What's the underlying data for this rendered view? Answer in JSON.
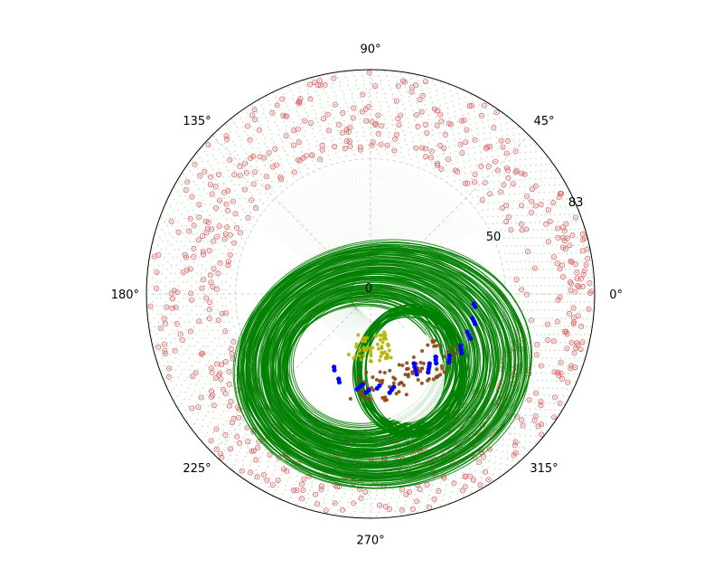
{
  "chart_data": {
    "type": "scatter",
    "projection": "polar",
    "theta_unit": "degrees",
    "theta_ticks": [
      0,
      45,
      90,
      135,
      180,
      225,
      270,
      315
    ],
    "theta_tick_labels": [
      "0°",
      "45°",
      "90°",
      "135°",
      "180°",
      "225°",
      "270°",
      "315°"
    ],
    "r_ticks": [
      0,
      50,
      83
    ],
    "r_tick_labels": [
      "0",
      "50",
      "83"
    ],
    "rlim": [
      0,
      83
    ],
    "r_label_angle": 22.5,
    "grid": true,
    "grid_style": "dashed",
    "title": "",
    "legend": "none",
    "colors": {
      "grid_points": "#8fd18f",
      "circled_points": "#e06060",
      "trajectories": "#008000",
      "highlight_points": "#0000ff",
      "brown_points": "#8b4513",
      "inner_points": "#b5b500"
    },
    "series": [
      {
        "kind": "point-grid",
        "color_key": "grid_points",
        "r_range": [
          52,
          83
        ],
        "r_step": 1.6,
        "arc_step_px": 9
      },
      {
        "kind": "circled-scatter",
        "color_key": "circled_points",
        "r_range": [
          53,
          82
        ],
        "theta_range": [
          0,
          360
        ],
        "count": 700
      },
      {
        "kind": "trajectory-loops",
        "color_key": "trajectories",
        "count": 140,
        "centers": [
          [
            -2,
            -8
          ],
          [
            5,
            -10
          ]
        ],
        "radii": [
          18,
          34
        ]
      },
      {
        "kind": "cluster",
        "color_key": "inner_points",
        "theta_range": [
          250,
          290
        ],
        "r_range": [
          15,
          25
        ],
        "count": 60
      },
      {
        "kind": "cluster",
        "color_key": "brown_points",
        "theta_range": [
          258,
          330
        ],
        "r_range": [
          28,
          40
        ],
        "count": 90
      },
      {
        "kind": "highlight",
        "color_key": "highlight_points",
        "points": [
          [
            300.0,
            34.3
          ],
          [
            300.6,
            32.9
          ],
          [
            301.2,
            31.6
          ],
          [
            302.0,
            30.3
          ],
          [
            306.4,
            36.0
          ],
          [
            307.7,
            35.2
          ],
          [
            309.0,
            34.5
          ],
          [
            310.3,
            33.8
          ],
          [
            313.5,
            35.3
          ],
          [
            314.7,
            34.3
          ],
          [
            316.0,
            33.5
          ],
          [
            319.0,
            38.5
          ],
          [
            320.5,
            37.8
          ],
          [
            322.0,
            37.1
          ],
          [
            327.0,
            40.2
          ],
          [
            328.5,
            39.3
          ],
          [
            330.0,
            38.5
          ],
          [
            336.0,
            40.6
          ],
          [
            337.2,
            39.5
          ],
          [
            338.6,
            38.5
          ],
          [
            344.0,
            40.3
          ],
          [
            345.2,
            39.6
          ],
          [
            346.6,
            38.8
          ],
          [
            353.0,
            39.0
          ],
          [
            354.5,
            38.4
          ],
          [
            262.0,
            35.6
          ],
          [
            263.5,
            34.5
          ],
          [
            265.0,
            33.6
          ],
          [
            267.5,
            36.5
          ],
          [
            269.0,
            35.6
          ],
          [
            274.0,
            35.0
          ],
          [
            275.6,
            34.1
          ],
          [
            281.0,
            37.2
          ],
          [
            282.5,
            36.3
          ],
          [
            284.0,
            35.5
          ],
          [
            250.5,
            34.6
          ],
          [
            249.4,
            33.6
          ],
          [
            244.6,
            31.2
          ],
          [
            243.4,
            30.2
          ]
        ]
      }
    ]
  }
}
